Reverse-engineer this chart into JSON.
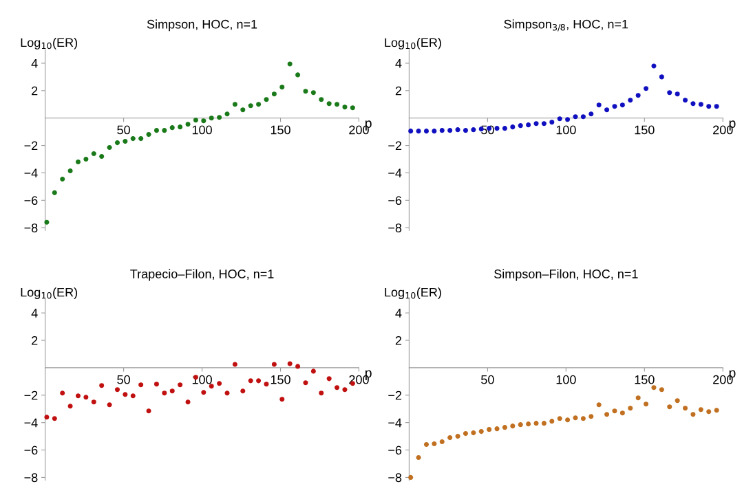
{
  "chart_data": [
    {
      "type": "scatter",
      "title": "Simpson, HOC, n=1",
      "xlabel": "p",
      "ylabel": "Log$_{10}$(ER)",
      "xlim": [
        0,
        200
      ],
      "ylim": [
        -8.2,
        5
      ],
      "xticks": [
        50,
        100,
        150,
        200
      ],
      "yticks": [
        -8,
        -6,
        -4,
        -2,
        2,
        4
      ],
      "grid": false,
      "marker": "circle",
      "x": [
        1,
        6,
        11,
        16,
        21,
        26,
        31,
        36,
        41,
        46,
        51,
        56,
        61,
        66,
        71,
        76,
        81,
        86,
        91,
        96,
        101,
        106,
        111,
        116,
        121,
        126,
        131,
        136,
        141,
        146,
        151,
        156,
        161,
        166,
        171,
        176,
        181,
        186,
        191,
        196
      ],
      "series": [
        {
          "color": "#1a7a1a",
          "values": [
            -7.6,
            -5.45,
            -4.45,
            -3.85,
            -3.2,
            -3.0,
            -2.6,
            -2.8,
            -2.15,
            -1.8,
            -1.7,
            -1.5,
            -1.5,
            -1.2,
            -0.9,
            -0.9,
            -0.7,
            -0.65,
            -0.45,
            -0.15,
            -0.2,
            0.0,
            0.05,
            0.3,
            1.0,
            0.6,
            0.9,
            1.0,
            1.35,
            1.75,
            2.25,
            3.95,
            3.15,
            1.95,
            1.85,
            1.35,
            1.05,
            1.0,
            0.8,
            0.75
          ]
        }
      ]
    },
    {
      "type": "scatter",
      "title": "Simpson$_{3/8}$, HOC, n=1",
      "xlabel": "p",
      "ylabel": "Log$_{10}$(ER)",
      "xlim": [
        0,
        200
      ],
      "ylim": [
        -8.2,
        5
      ],
      "xticks": [
        50,
        100,
        150,
        200
      ],
      "yticks": [
        -8,
        -6,
        -4,
        -2,
        2,
        4
      ],
      "grid": false,
      "marker": "circle",
      "x": [
        1,
        6,
        11,
        16,
        21,
        26,
        31,
        36,
        41,
        46,
        51,
        56,
        61,
        66,
        71,
        76,
        81,
        86,
        91,
        96,
        101,
        106,
        111,
        116,
        121,
        126,
        131,
        136,
        141,
        146,
        151,
        156,
        161,
        166,
        171,
        176,
        181,
        186,
        191,
        196
      ],
      "series": [
        {
          "color": "#1010c0",
          "values": [
            -0.95,
            -0.95,
            -0.95,
            -0.95,
            -0.9,
            -0.9,
            -0.85,
            -0.9,
            -0.85,
            -0.8,
            -0.75,
            -0.75,
            -0.75,
            -0.65,
            -0.55,
            -0.5,
            -0.4,
            -0.4,
            -0.3,
            -0.05,
            -0.1,
            0.1,
            0.1,
            0.3,
            0.95,
            0.6,
            0.85,
            0.95,
            1.3,
            1.65,
            2.15,
            3.8,
            3.0,
            1.85,
            1.75,
            1.3,
            1.05,
            1.0,
            0.85,
            0.85
          ]
        }
      ]
    },
    {
      "type": "scatter",
      "title": "Trapecio–Filon, HOC, n=1",
      "xlabel": "p",
      "ylabel": "Log$_{10}$(ER)",
      "xlim": [
        0,
        200
      ],
      "ylim": [
        -8.2,
        5
      ],
      "xticks": [
        50,
        100,
        150,
        200
      ],
      "yticks": [
        -8,
        -6,
        -4,
        -2,
        2,
        4
      ],
      "grid": false,
      "marker": "circle",
      "x": [
        1,
        6,
        11,
        16,
        21,
        26,
        31,
        36,
        41,
        46,
        51,
        56,
        61,
        66,
        71,
        76,
        81,
        86,
        91,
        96,
        101,
        106,
        111,
        116,
        121,
        126,
        131,
        136,
        141,
        146,
        151,
        156,
        161,
        166,
        171,
        176,
        181,
        186,
        191,
        196
      ],
      "series": [
        {
          "color": "#c01010",
          "values": [
            -3.6,
            -3.7,
            -1.85,
            -2.8,
            -2.05,
            -2.15,
            -2.5,
            -1.3,
            -2.7,
            -1.6,
            -1.95,
            -2.05,
            -1.25,
            -3.15,
            -1.2,
            -1.85,
            -1.7,
            -1.25,
            -2.5,
            -0.7,
            -1.8,
            -1.35,
            -1.15,
            -1.85,
            0.25,
            -1.7,
            -0.95,
            -0.95,
            -1.2,
            0.25,
            -2.3,
            0.3,
            0.1,
            -1.1,
            -0.25,
            -1.85,
            -0.8,
            -1.45,
            -1.6,
            -1.15
          ]
        }
      ]
    },
    {
      "type": "scatter",
      "title": "Simpson–Filon, HOC, n=1",
      "xlabel": "p",
      "ylabel": "Log$_{10}$(ER)",
      "xlim": [
        0,
        200
      ],
      "ylim": [
        -8.2,
        5
      ],
      "xticks": [
        50,
        100,
        150,
        200
      ],
      "yticks": [
        -8,
        -6,
        -4,
        -2,
        2,
        4
      ],
      "grid": false,
      "marker": "circle",
      "x": [
        1,
        6,
        11,
        16,
        21,
        26,
        31,
        36,
        41,
        46,
        51,
        56,
        61,
        66,
        71,
        76,
        81,
        86,
        91,
        96,
        101,
        106,
        111,
        116,
        121,
        126,
        131,
        136,
        141,
        146,
        151,
        156,
        161,
        166,
        171,
        176,
        181,
        186,
        191,
        196
      ],
      "series": [
        {
          "color": "#c07020",
          "values": [
            -8.0,
            -6.55,
            -5.6,
            -5.55,
            -5.4,
            -5.1,
            -5.0,
            -4.8,
            -4.75,
            -4.65,
            -4.5,
            -4.45,
            -4.35,
            -4.25,
            -4.15,
            -4.1,
            -4.05,
            -4.05,
            -3.9,
            -3.7,
            -3.8,
            -3.65,
            -3.7,
            -3.55,
            -2.7,
            -3.4,
            -3.15,
            -3.3,
            -2.95,
            -2.2,
            -2.65,
            -1.45,
            -1.6,
            -2.85,
            -2.4,
            -2.95,
            -3.4,
            -3.05,
            -3.2,
            -3.1
          ]
        }
      ]
    }
  ]
}
